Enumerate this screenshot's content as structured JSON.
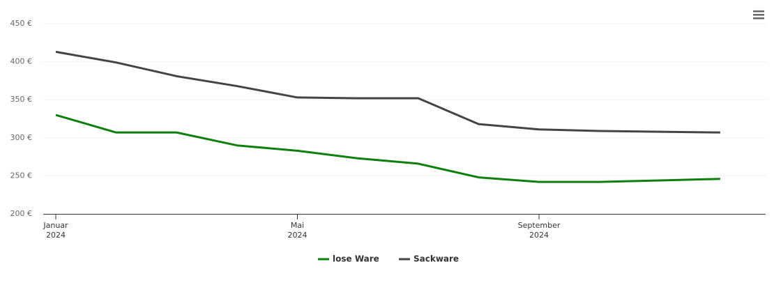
{
  "chart_data": {
    "type": "line",
    "x": [
      "2024-01",
      "2024-02",
      "2024-03",
      "2024-04",
      "2024-05",
      "2024-06",
      "2024-07",
      "2024-08",
      "2024-09",
      "2024-10",
      "2024-11",
      "2024-12"
    ],
    "series": [
      {
        "name": "lose Ware",
        "color": "#0d7f0d",
        "values": [
          330,
          307,
          307,
          290,
          283,
          273,
          266,
          248,
          242,
          242,
          244,
          246
        ]
      },
      {
        "name": "Sackware",
        "color": "#444444",
        "values": [
          413,
          399,
          381,
          368,
          353,
          352,
          352,
          318,
          311,
          309,
          308,
          307
        ]
      }
    ],
    "ylim": [
      200,
      450
    ],
    "yticks": [
      {
        "value": 200,
        "label": "200 €"
      },
      {
        "value": 250,
        "label": "250 €"
      },
      {
        "value": 300,
        "label": "300 €"
      },
      {
        "value": 350,
        "label": "350 €"
      },
      {
        "value": 400,
        "label": "400 €"
      },
      {
        "value": 450,
        "label": "450 €"
      }
    ],
    "xticks": [
      {
        "value": "2024-01",
        "label": [
          "Januar",
          "2024"
        ]
      },
      {
        "value": "2024-05",
        "label": [
          "Mai",
          "2024"
        ]
      },
      {
        "value": "2024-09",
        "label": [
          "September",
          "2024"
        ]
      }
    ],
    "grid": true,
    "legend": "bottom"
  }
}
